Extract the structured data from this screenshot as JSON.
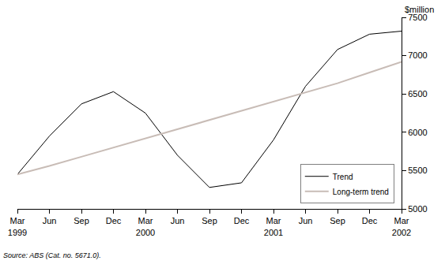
{
  "chart_data": {
    "type": "line",
    "y_label": "$million",
    "source": "Source: ABS (Cat. no. 5671.0).",
    "categories": [
      "Mar 1999",
      "Jun",
      "Sep",
      "Dec",
      "Mar 2000",
      "Jun",
      "Sep",
      "Dec",
      "Mar 2001",
      "Jun",
      "Sep",
      "Dec",
      "Mar 2002"
    ],
    "series": [
      {
        "name": "Trend",
        "color": "#000000",
        "values": [
          5450,
          5950,
          6370,
          6530,
          6250,
          5700,
          5280,
          5340,
          5900,
          6600,
          7080,
          7280,
          7320
        ]
      },
      {
        "name": "Long-term trend",
        "color": "#c8bcb6",
        "values": [
          5450,
          5560,
          5680,
          5800,
          5920,
          6040,
          6160,
          6280,
          6400,
          6520,
          6640,
          6780,
          6920
        ]
      }
    ],
    "ylim": [
      5000,
      7500
    ],
    "yticks": [
      5000,
      5500,
      6000,
      6500,
      7000,
      7500
    ],
    "grid": false,
    "legend": "bottom right"
  }
}
